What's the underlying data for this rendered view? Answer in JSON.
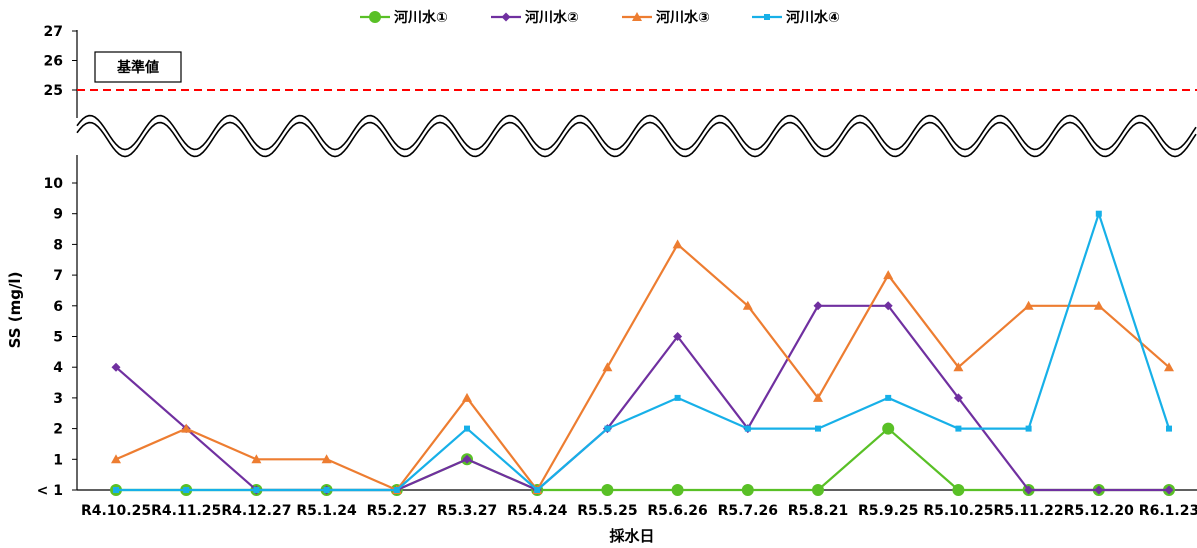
{
  "chart_data": {
    "type": "line",
    "xlabel": "採水日",
    "ylabel": "SS (mg/l)",
    "categories": [
      "R4.10.25",
      "R4.11.25",
      "R4.12.27",
      "R5.1.24",
      "R5.2.27",
      "R5.3.27",
      "R5.4.24",
      "R5.5.25",
      "R5.6.26",
      "R5.7.26",
      "R5.8.21",
      "R5.9.25",
      "R5.10.25",
      "R5.11.22",
      "R5.12.20",
      "R6.1.23"
    ],
    "ylim": [
      0,
      27
    ],
    "axis_break": [
      10,
      24.2
    ],
    "lower_ticks": [
      "< 1",
      "1",
      "2",
      "3",
      "4",
      "5",
      "6",
      "7",
      "8",
      "9",
      "10"
    ],
    "upper_ticks": [
      "25",
      "26",
      "27"
    ],
    "grid": false,
    "legend_position": "top",
    "reference_line": {
      "label": "基準値",
      "value": 25,
      "color": "#ff0000"
    },
    "series": [
      {
        "name": "河川水①",
        "color": "#59c026",
        "marker": "circle",
        "values": [
          0,
          0,
          0,
          0,
          0,
          1,
          0,
          0,
          0,
          0,
          0,
          2,
          0,
          0,
          0,
          0
        ]
      },
      {
        "name": "河川水②",
        "color": "#7030a0",
        "marker": "diamond",
        "values": [
          4,
          2,
          0,
          0,
          0,
          1,
          0,
          2,
          5,
          2,
          6,
          6,
          3,
          0,
          0,
          0
        ]
      },
      {
        "name": "河川水③",
        "color": "#ed7d31",
        "marker": "triangle",
        "values": [
          1,
          2,
          1,
          1,
          0,
          3,
          0,
          4,
          8,
          6,
          3,
          7,
          4,
          6,
          6,
          4
        ]
      },
      {
        "name": "河川水④",
        "color": "#17b0e8",
        "marker": "square",
        "values": [
          0,
          0,
          0,
          0,
          0,
          2,
          0,
          2,
          3,
          2,
          2,
          3,
          2,
          2,
          9,
          2
        ]
      }
    ]
  }
}
